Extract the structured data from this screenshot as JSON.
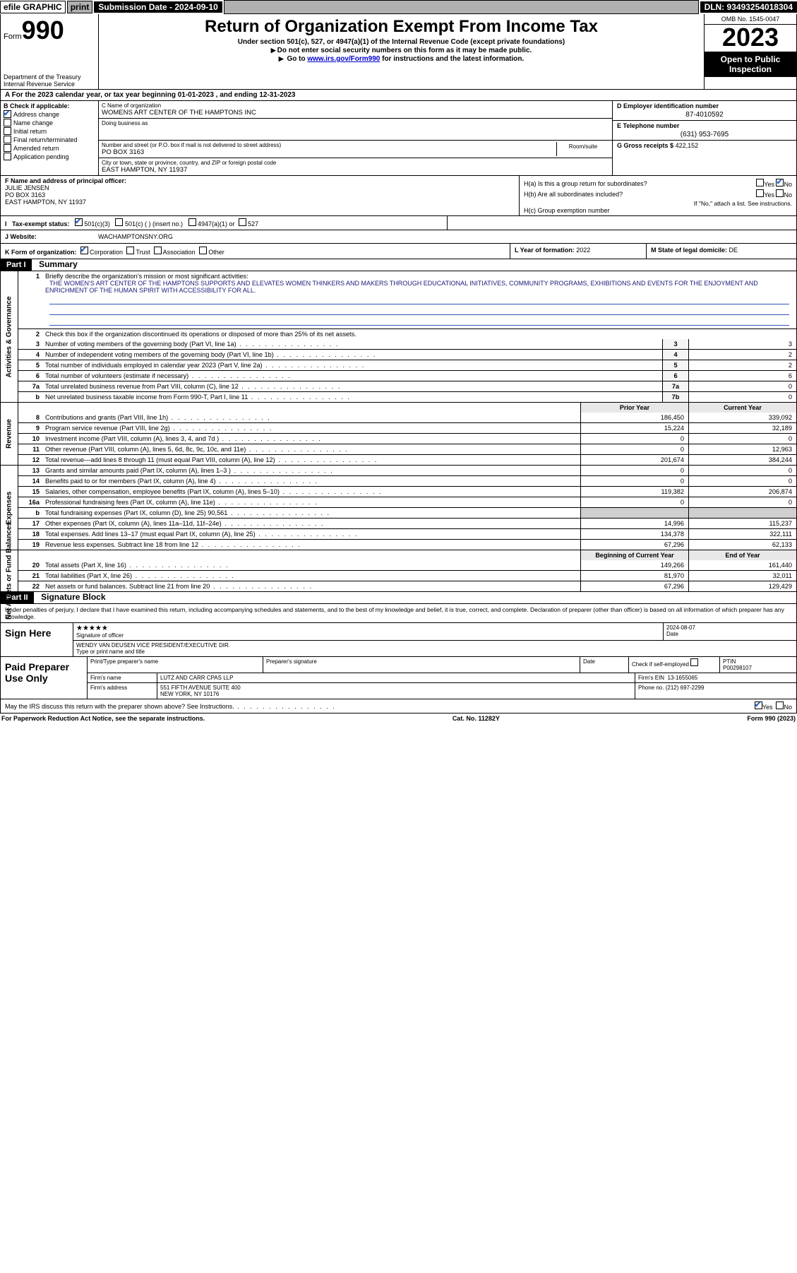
{
  "topbar": {
    "efile": "efile GRAPHIC",
    "print": "print",
    "submission_label": "Submission Date - 2024-09-10",
    "dln": "DLN: 93493254018304"
  },
  "header": {
    "form_prefix": "Form",
    "form_number": "990",
    "dept": "Department of the Treasury\nInternal Revenue Service",
    "title": "Return of Organization Exempt From Income Tax",
    "subtitle1": "Under section 501(c), 527, or 4947(a)(1) of the Internal Revenue Code (except private foundations)",
    "subtitle2": "Do not enter social security numbers on this form as it may be made public.",
    "subtitle3_pre": "Go to ",
    "subtitle3_link": "www.irs.gov/Form990",
    "subtitle3_post": " for instructions and the latest information.",
    "omb": "OMB No. 1545-0047",
    "year": "2023",
    "open_public": "Open to Public Inspection"
  },
  "row_a": "A For the 2023 calendar year, or tax year beginning 01-01-2023   , and ending 12-31-2023",
  "col_b": {
    "title": "B Check if applicable:",
    "items": [
      {
        "label": "Address change",
        "checked": true
      },
      {
        "label": "Name change",
        "checked": false
      },
      {
        "label": "Initial return",
        "checked": false
      },
      {
        "label": "Final return/terminated",
        "checked": false
      },
      {
        "label": "Amended return",
        "checked": false
      },
      {
        "label": "Application pending",
        "checked": false
      }
    ]
  },
  "col_c": {
    "name_label": "C Name of organization",
    "name": "WOMENS ART CENTER OF THE HAMPTONS INC",
    "dba_label": "Doing business as",
    "dba": "",
    "street_label": "Number and street (or P.O. box if mail is not delivered to street address)",
    "street": "PO BOX 3163",
    "room_label": "Room/suite",
    "room": "",
    "city_label": "City or town, state or province, country, and ZIP or foreign postal code",
    "city": "EAST HAMPTON, NY  11937"
  },
  "col_de": {
    "d_label": "D Employer identification number",
    "d_val": "87-4010592",
    "e_label": "E Telephone number",
    "e_val": "(631) 953-7695",
    "g_label": "G Gross receipts $",
    "g_val": "422,152"
  },
  "row_f": {
    "label": "F Name and address of principal officer:",
    "name": "JULIE JENSEN",
    "addr1": "PO BOX 3163",
    "addr2": "EAST HAMPTON, NY  11937"
  },
  "row_h": {
    "a_label": "H(a)  Is this a group return for subordinates?",
    "a_yes": "Yes",
    "a_no": "No",
    "a_checked": "no",
    "b_label": "H(b)  Are all subordinates included?",
    "b_yes": "Yes",
    "b_no": "No",
    "b_note": "If \"No,\" attach a list. See instructions.",
    "c_label": "H(c)  Group exemption number"
  },
  "row_i": {
    "label": "Tax-exempt status:",
    "c3": "501(c)(3)",
    "c": "501(c) (  ) (insert no.)",
    "a1": "4947(a)(1) or",
    "s527": "527",
    "c3_checked": true
  },
  "row_j": {
    "label": "J   Website:",
    "val": "WACHAMPTONSNY.ORG"
  },
  "row_k": {
    "label": "K Form of organization:",
    "corp": "Corporation",
    "trust": "Trust",
    "assoc": "Association",
    "other": "Other",
    "corp_checked": true,
    "l_label": "L Year of formation:",
    "l_val": "2022",
    "m_label": "M State of legal domicile:",
    "m_val": "DE"
  },
  "part1_title": "Summary",
  "summary": {
    "mission_label": "Briefly describe the organization's mission or most significant activities:",
    "mission": "THE WOMEN'S ART CENTER OF THE HAMPTONS SUPPORTS AND ELEVATES WOMEN THINKERS AND MAKERS THROUGH EDUCATIONAL INITIATIVES, COMMUNITY PROGRAMS, EXHIBITIONS AND EVENTS FOR THE ENJOYMENT AND ENRICHMENT OF THE HUMAN SPIRIT WITH ACCESSIBILITY FOR ALL.",
    "line2": "Check this box      if the organization discontinued its operations or disposed of more than 25% of its net assets.",
    "rows_simple": [
      {
        "n": "3",
        "desc": "Number of voting members of the governing body (Part VI, line 1a)",
        "k": "3",
        "v": "3"
      },
      {
        "n": "4",
        "desc": "Number of independent voting members of the governing body (Part VI, line 1b)",
        "k": "4",
        "v": "2"
      },
      {
        "n": "5",
        "desc": "Total number of individuals employed in calendar year 2023 (Part V, line 2a)",
        "k": "5",
        "v": "2"
      },
      {
        "n": "6",
        "desc": "Total number of volunteers (estimate if necessary)",
        "k": "6",
        "v": "6"
      },
      {
        "n": "7a",
        "desc": "Total unrelated business revenue from Part VIII, column (C), line 12",
        "k": "7a",
        "v": "0"
      },
      {
        "n": "b",
        "desc": "Net unrelated business taxable income from Form 990-T, Part I, line 11",
        "k": "7b",
        "v": "0"
      }
    ],
    "col_hdr_prior": "Prior Year",
    "col_hdr_current": "Current Year",
    "revenue_rows": [
      {
        "n": "8",
        "desc": "Contributions and grants (Part VIII, line 1h)",
        "prior": "186,450",
        "curr": "339,092"
      },
      {
        "n": "9",
        "desc": "Program service revenue (Part VIII, line 2g)",
        "prior": "15,224",
        "curr": "32,189"
      },
      {
        "n": "10",
        "desc": "Investment income (Part VIII, column (A), lines 3, 4, and 7d )",
        "prior": "0",
        "curr": "0"
      },
      {
        "n": "11",
        "desc": "Other revenue (Part VIII, column (A), lines 5, 6d, 8c, 9c, 10c, and 11e)",
        "prior": "0",
        "curr": "12,963"
      },
      {
        "n": "12",
        "desc": "Total revenue—add lines 8 through 11 (must equal Part VIII, column (A), line 12)",
        "prior": "201,674",
        "curr": "384,244"
      }
    ],
    "expense_rows": [
      {
        "n": "13",
        "desc": "Grants and similar amounts paid (Part IX, column (A), lines 1–3 )",
        "prior": "0",
        "curr": "0"
      },
      {
        "n": "14",
        "desc": "Benefits paid to or for members (Part IX, column (A), line 4)",
        "prior": "0",
        "curr": "0"
      },
      {
        "n": "15",
        "desc": "Salaries, other compensation, employee benefits (Part IX, column (A), lines 5–10)",
        "prior": "119,382",
        "curr": "206,874"
      },
      {
        "n": "16a",
        "desc": "Professional fundraising fees (Part IX, column (A), line 11e)",
        "prior": "0",
        "curr": "0"
      },
      {
        "n": "b",
        "desc": "Total fundraising expenses (Part IX, column (D), line 25) 90,561",
        "prior": "",
        "curr": "",
        "shade": true
      },
      {
        "n": "17",
        "desc": "Other expenses (Part IX, column (A), lines 11a–11d, 11f–24e)",
        "prior": "14,996",
        "curr": "115,237"
      },
      {
        "n": "18",
        "desc": "Total expenses. Add lines 13–17 (must equal Part IX, column (A), line 25)",
        "prior": "134,378",
        "curr": "322,111"
      },
      {
        "n": "19",
        "desc": "Revenue less expenses. Subtract line 18 from line 12",
        "prior": "67,296",
        "curr": "62,133"
      }
    ],
    "col_hdr_begin": "Beginning of Current Year",
    "col_hdr_end": "End of Year",
    "net_rows": [
      {
        "n": "20",
        "desc": "Total assets (Part X, line 16)",
        "prior": "149,266",
        "curr": "161,440"
      },
      {
        "n": "21",
        "desc": "Total liabilities (Part X, line 26)",
        "prior": "81,970",
        "curr": "32,011"
      },
      {
        "n": "22",
        "desc": "Net assets or fund balances. Subtract line 21 from line 20",
        "prior": "67,296",
        "curr": "129,429"
      }
    ],
    "side_gov": "Activities & Governance",
    "side_rev": "Revenue",
    "side_exp": "Expenses",
    "side_net": "Net Assets or Fund Balances"
  },
  "part2_title": "Signature Block",
  "sig": {
    "perjury": "Under penalties of perjury, I declare that I have examined this return, including accompanying schedules and statements, and to the best of my knowledge and belief, it is true, correct, and complete. Declaration of preparer (other than officer) is based on all information of which preparer has any knowledge.",
    "sign_here": "Sign Here",
    "officer_sig_star": "★★★★★",
    "officer_sig_label": "Signature of officer",
    "officer_name": "WENDY VAN DEUSEN  VICE PRESIDENT/EXECUTIVE DIR.",
    "officer_name_label": "Type or print name and title",
    "date_label": "Date",
    "date": "2024-08-07",
    "paid_prep": "Paid Preparer Use Only",
    "prep_name_label": "Print/Type preparer's name",
    "prep_sig_label": "Preparer's signature",
    "prep_date_label": "Date",
    "self_emp_label": "Check      if self-employed",
    "ptin_label": "PTIN",
    "ptin": "P00298107",
    "firm_name_label": "Firm's name",
    "firm_name": "LUTZ AND CARR CPAS LLP",
    "firm_ein_label": "Firm's EIN",
    "firm_ein": "13-1655065",
    "firm_addr_label": "Firm's address",
    "firm_addr1": "551 FIFTH AVENUE SUITE 400",
    "firm_addr2": "NEW YORK, NY  10176",
    "phone_label": "Phone no.",
    "phone": "(212) 697-2299",
    "discuss": "May the IRS discuss this return with the preparer shown above? See Instructions.",
    "yes": "Yes",
    "no": "No",
    "discuss_checked": "yes"
  },
  "footer": {
    "left": "For Paperwork Reduction Act Notice, see the separate instructions.",
    "mid": "Cat. No. 11282Y",
    "right": "Form 990 (2023)"
  },
  "colors": {
    "link": "#0000cc",
    "check": "#3366cc",
    "rule": "#3355bb"
  }
}
